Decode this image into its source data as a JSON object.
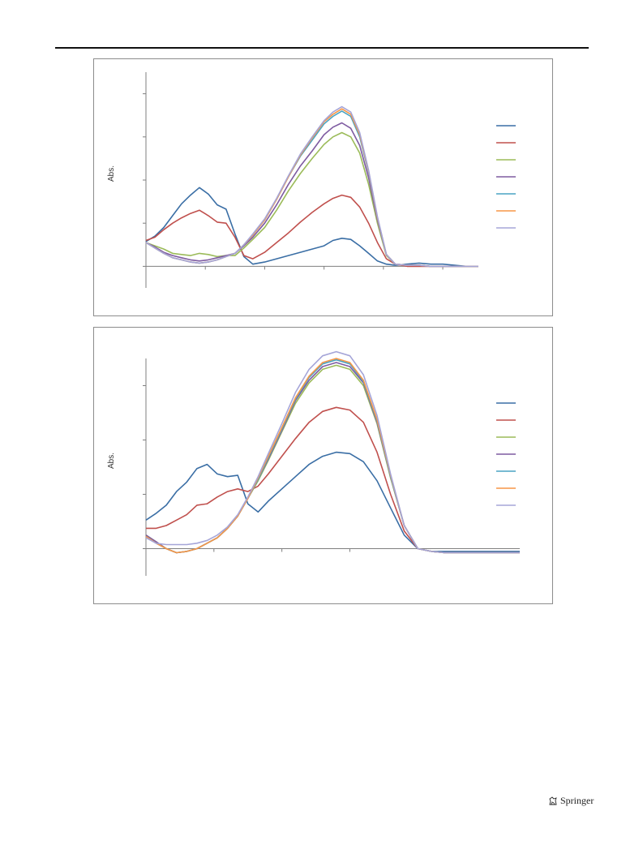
{
  "page": {
    "publisher": "Springer"
  },
  "chart_data": [
    {
      "type": "line",
      "ylabel": "Abs.",
      "xlabel": "",
      "grid": false,
      "legend": "right",
      "ylim": [
        -0.2,
        1.8
      ],
      "xlim": [
        0,
        5.6
      ],
      "x": [
        0,
        0.15,
        0.3,
        0.45,
        0.6,
        0.75,
        0.9,
        1.05,
        1.2,
        1.35,
        1.5,
        1.65,
        1.8,
        2.0,
        2.2,
        2.4,
        2.6,
        2.8,
        3.0,
        3.15,
        3.3,
        3.45,
        3.6,
        3.75,
        3.9,
        4.05,
        4.2,
        4.4,
        4.6,
        4.8,
        5.0,
        5.2,
        5.4,
        5.6
      ],
      "series": [
        {
          "color": "#3a6ea5",
          "values": [
            0.23,
            0.28,
            0.36,
            0.47,
            0.58,
            0.66,
            0.73,
            0.67,
            0.57,
            0.53,
            0.3,
            0.09,
            0.02,
            0.04,
            0.07,
            0.1,
            0.13,
            0.16,
            0.19,
            0.24,
            0.26,
            0.25,
            0.19,
            0.12,
            0.05,
            0.02,
            0.01,
            0.02,
            0.03,
            0.02,
            0.02,
            0.01,
            0.0,
            0.0
          ]
        },
        {
          "color": "#c0504d",
          "values": [
            0.24,
            0.27,
            0.34,
            0.4,
            0.45,
            0.49,
            0.52,
            0.47,
            0.41,
            0.4,
            0.27,
            0.1,
            0.07,
            0.13,
            0.22,
            0.31,
            0.41,
            0.5,
            0.58,
            0.63,
            0.66,
            0.64,
            0.55,
            0.4,
            0.22,
            0.07,
            0.02,
            0.0,
            0.0,
            0.0,
            0.0,
            0.0,
            0.0,
            0.0
          ]
        },
        {
          "color": "#9bbb59",
          "values": [
            0.22,
            0.19,
            0.16,
            0.12,
            0.11,
            0.1,
            0.12,
            0.11,
            0.09,
            0.1,
            0.1,
            0.17,
            0.25,
            0.36,
            0.52,
            0.7,
            0.86,
            1.0,
            1.13,
            1.2,
            1.24,
            1.2,
            1.05,
            0.76,
            0.4,
            0.1,
            0.02,
            0.01,
            0.01,
            0.0,
            0.0,
            0.0,
            0.0,
            0.0
          ]
        },
        {
          "color": "#7e5ba1",
          "values": [
            0.22,
            0.18,
            0.13,
            0.1,
            0.08,
            0.06,
            0.05,
            0.06,
            0.08,
            0.1,
            0.12,
            0.19,
            0.27,
            0.4,
            0.57,
            0.76,
            0.93,
            1.07,
            1.22,
            1.29,
            1.33,
            1.28,
            1.12,
            0.82,
            0.43,
            0.11,
            0.02,
            0.01,
            0.01,
            0.0,
            0.0,
            0.0,
            0.0,
            0.0
          ]
        },
        {
          "color": "#4aa3c3",
          "values": [
            0.22,
            0.17,
            0.12,
            0.08,
            0.06,
            0.04,
            0.03,
            0.04,
            0.06,
            0.09,
            0.12,
            0.2,
            0.29,
            0.43,
            0.62,
            0.83,
            1.02,
            1.17,
            1.32,
            1.39,
            1.44,
            1.39,
            1.2,
            0.87,
            0.45,
            0.11,
            0.02,
            0.01,
            0.01,
            0.0,
            0.0,
            0.0,
            0.0,
            0.0
          ]
        },
        {
          "color": "#f79646",
          "values": [
            0.22,
            0.17,
            0.12,
            0.08,
            0.06,
            0.04,
            0.03,
            0.04,
            0.06,
            0.09,
            0.12,
            0.2,
            0.29,
            0.43,
            0.62,
            0.83,
            1.03,
            1.19,
            1.34,
            1.41,
            1.46,
            1.41,
            1.22,
            0.88,
            0.45,
            0.11,
            0.02,
            0.01,
            0.01,
            0.0,
            0.0,
            0.0,
            0.0,
            0.0
          ]
        },
        {
          "color": "#a5a5d8",
          "values": [
            0.22,
            0.17,
            0.12,
            0.08,
            0.06,
            0.04,
            0.03,
            0.04,
            0.06,
            0.09,
            0.12,
            0.2,
            0.3,
            0.44,
            0.63,
            0.84,
            1.04,
            1.2,
            1.35,
            1.43,
            1.48,
            1.43,
            1.24,
            0.89,
            0.46,
            0.11,
            0.02,
            0.01,
            0.01,
            0.0,
            0.0,
            0.0,
            0.0,
            0.0
          ]
        }
      ]
    },
    {
      "type": "line",
      "ylabel": "Abs.",
      "xlabel": "",
      "grid": false,
      "legend": "right",
      "ylim": [
        -0.2,
        1.4
      ],
      "xlim": [
        0,
        5.5
      ],
      "x": [
        0,
        0.15,
        0.3,
        0.45,
        0.6,
        0.75,
        0.9,
        1.05,
        1.2,
        1.35,
        1.5,
        1.65,
        1.8,
        2.0,
        2.2,
        2.4,
        2.6,
        2.8,
        3.0,
        3.2,
        3.4,
        3.6,
        3.8,
        4.0,
        4.2,
        4.4,
        4.7,
        5.0,
        5.2,
        5.5
      ],
      "series": [
        {
          "color": "#3a6ea5",
          "values": [
            0.21,
            0.26,
            0.32,
            0.42,
            0.49,
            0.59,
            0.62,
            0.55,
            0.53,
            0.54,
            0.33,
            0.27,
            0.35,
            0.44,
            0.53,
            0.62,
            0.68,
            0.71,
            0.7,
            0.64,
            0.5,
            0.3,
            0.1,
            0.0,
            -0.02,
            -0.02,
            -0.02,
            -0.02,
            -0.02,
            -0.02
          ]
        },
        {
          "color": "#c0504d",
          "values": [
            0.15,
            0.15,
            0.17,
            0.21,
            0.25,
            0.32,
            0.33,
            0.38,
            0.42,
            0.44,
            0.42,
            0.46,
            0.55,
            0.68,
            0.81,
            0.93,
            1.01,
            1.04,
            1.02,
            0.93,
            0.71,
            0.4,
            0.13,
            0.0,
            -0.02,
            -0.03,
            -0.03,
            -0.03,
            -0.03,
            -0.03
          ]
        },
        {
          "color": "#9bbb59",
          "values": [
            0.1,
            0.05,
            0.0,
            -0.03,
            -0.02,
            0.0,
            0.04,
            0.08,
            0.15,
            0.24,
            0.37,
            0.5,
            0.65,
            0.86,
            1.07,
            1.22,
            1.32,
            1.35,
            1.32,
            1.2,
            0.92,
            0.52,
            0.17,
            0.0,
            -0.02,
            -0.03,
            -0.03,
            -0.03,
            -0.03,
            -0.03
          ]
        },
        {
          "color": "#7e5ba1",
          "values": [
            0.1,
            0.05,
            0.0,
            -0.03,
            -0.02,
            0.0,
            0.04,
            0.08,
            0.15,
            0.24,
            0.37,
            0.51,
            0.66,
            0.87,
            1.09,
            1.24,
            1.34,
            1.37,
            1.34,
            1.22,
            0.93,
            0.53,
            0.17,
            0.0,
            -0.02,
            -0.03,
            -0.03,
            -0.03,
            -0.03,
            -0.03
          ]
        },
        {
          "color": "#4aa3c3",
          "values": [
            0.09,
            0.04,
            0.0,
            -0.03,
            -0.02,
            0.0,
            0.04,
            0.08,
            0.15,
            0.24,
            0.37,
            0.51,
            0.67,
            0.88,
            1.1,
            1.26,
            1.36,
            1.39,
            1.36,
            1.23,
            0.94,
            0.53,
            0.17,
            0.0,
            -0.02,
            -0.03,
            -0.03,
            -0.03,
            -0.03,
            -0.03
          ]
        },
        {
          "color": "#f79646",
          "values": [
            0.09,
            0.04,
            0.0,
            -0.03,
            -0.02,
            0.0,
            0.04,
            0.08,
            0.15,
            0.24,
            0.37,
            0.52,
            0.68,
            0.89,
            1.11,
            1.27,
            1.37,
            1.4,
            1.37,
            1.24,
            0.95,
            0.54,
            0.17,
            0.0,
            -0.02,
            -0.03,
            -0.03,
            -0.03,
            -0.03,
            -0.03
          ]
        },
        {
          "color": "#a5a5d8",
          "values": [
            0.08,
            0.04,
            0.03,
            0.03,
            0.03,
            0.04,
            0.06,
            0.1,
            0.16,
            0.25,
            0.38,
            0.53,
            0.7,
            0.92,
            1.15,
            1.32,
            1.42,
            1.45,
            1.42,
            1.28,
            0.98,
            0.55,
            0.17,
            0.0,
            -0.02,
            -0.03,
            -0.03,
            -0.03,
            -0.03,
            -0.03
          ]
        }
      ]
    }
  ]
}
